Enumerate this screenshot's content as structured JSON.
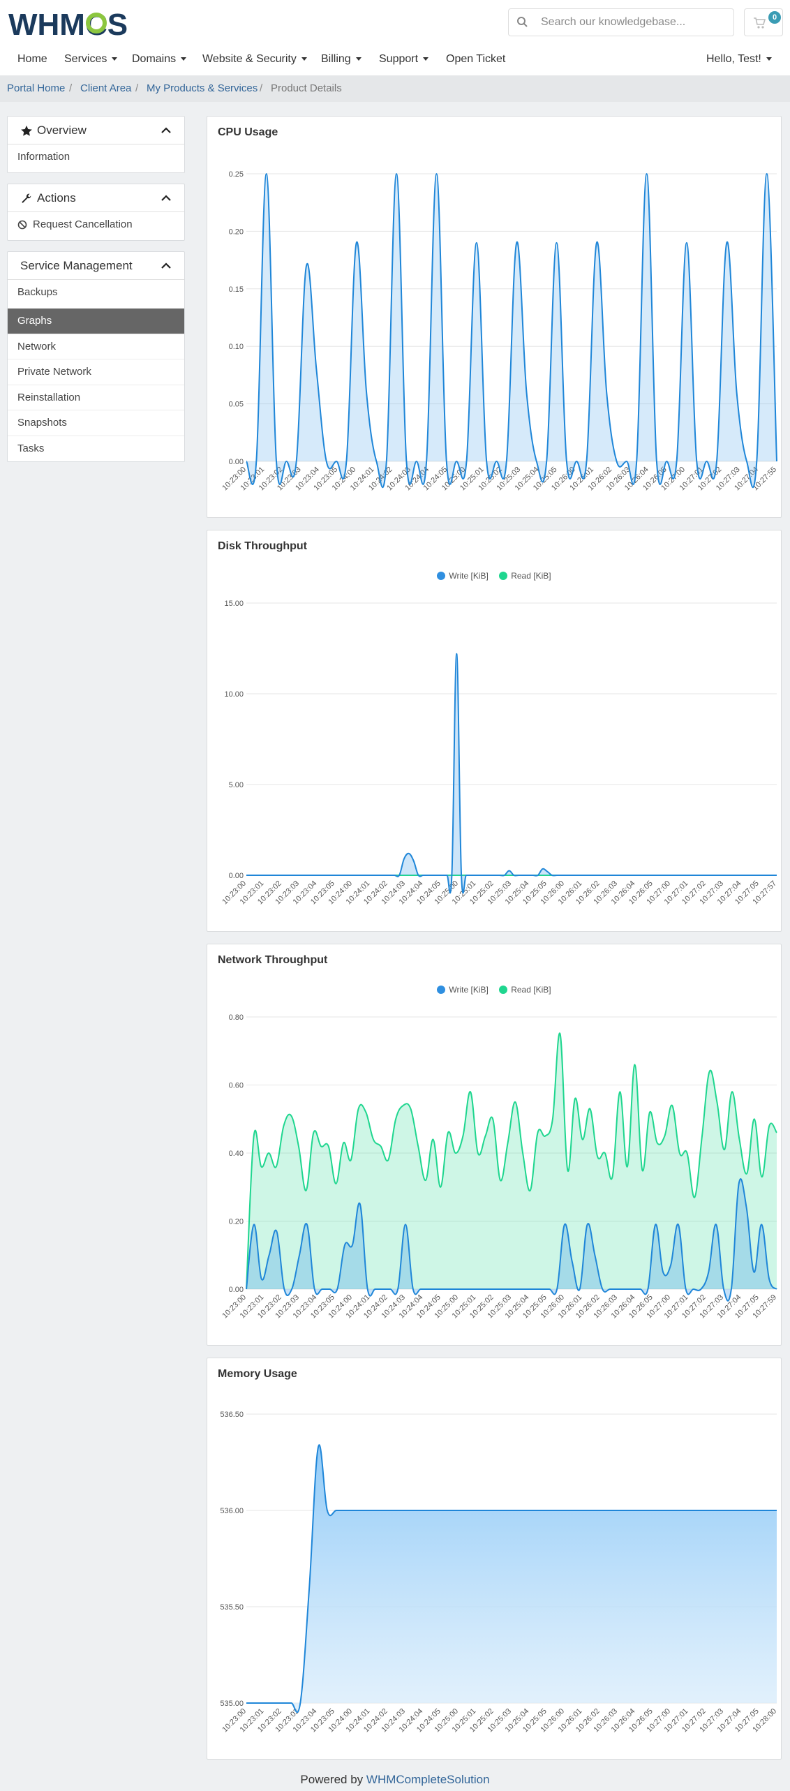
{
  "header": {
    "logo_text": "WHMCS",
    "search": {
      "placeholder": "Search our knowledgebase...",
      "value": ""
    },
    "cart_count": "0"
  },
  "nav": {
    "items": [
      {
        "label": "Home",
        "dropdown": false
      },
      {
        "label": "Services",
        "dropdown": true
      },
      {
        "label": "Domains",
        "dropdown": true
      },
      {
        "label": "Website & Security",
        "dropdown": true
      },
      {
        "label": "Billing",
        "dropdown": true
      },
      {
        "label": "Support",
        "dropdown": true
      },
      {
        "label": "Open Ticket",
        "dropdown": false
      }
    ],
    "user": "Hello, Test!"
  },
  "breadcrumb": [
    "Portal Home",
    "Client Area",
    "My Products & Services",
    "Product Details"
  ],
  "sidebar": {
    "overview": {
      "title": "Overview",
      "items": [
        "Information"
      ]
    },
    "actions": {
      "title": "Actions",
      "items": [
        "Request Cancellation"
      ]
    },
    "service_management": {
      "title": "Service Management",
      "items": [
        "Backups",
        "Graphs",
        "Network",
        "Private Network",
        "Reinstallation",
        "Snapshots",
        "Tasks"
      ],
      "active": "Graphs"
    }
  },
  "colors": {
    "write": "#2f8fe0",
    "read": "#1fd68f",
    "active_bg": "#666666",
    "link": "#336699"
  },
  "chart_data": [
    {
      "type": "area",
      "title": "CPU Usage",
      "yticks": [
        "0.00",
        "0.05",
        "0.10",
        "0.15",
        "0.20",
        "0.25"
      ],
      "ylim": [
        0,
        0.25
      ],
      "xticks": [
        "10:23:00",
        "10:23:01",
        "10:23:02",
        "10:23:03",
        "10:23:04",
        "10:23:05",
        "10:24:00",
        "10:24:01",
        "10:24:02",
        "10:24:03",
        "10:24:04",
        "10:24:05",
        "10:25:00",
        "10:25:01",
        "10:25:02",
        "10:25:03",
        "10:25:04",
        "10:25:05",
        "10:26:00",
        "10:26:01",
        "10:26:02",
        "10:26:03",
        "10:26:04",
        "10:26:05",
        "10:27:00",
        "10:27:01",
        "10:27:02",
        "10:27:03",
        "10:27:04",
        "10:27:55"
      ],
      "grid": true,
      "series": [
        {
          "values": [
            0,
            0,
            0.25,
            0,
            0,
            0,
            0.17,
            0.08,
            0,
            0,
            0,
            0.19,
            0.06,
            0,
            0,
            0.25,
            0,
            0,
            0,
            0.25,
            0,
            0,
            0,
            0.19,
            0,
            0,
            0,
            0.19,
            0.06,
            0,
            0,
            0.19,
            0,
            0,
            0,
            0.19,
            0.06,
            0,
            0,
            0,
            0.25,
            0,
            0,
            0,
            0.19,
            0,
            0,
            0,
            0.19,
            0.06,
            0,
            0,
            0.25,
            0
          ]
        }
      ]
    },
    {
      "type": "area",
      "title": "Disk Throughput",
      "legend": [
        "Write [KiB]",
        "Read [KiB]"
      ],
      "yticks": [
        "0.00",
        "5.00",
        "10.00",
        "15.00"
      ],
      "ylim": [
        0,
        15
      ],
      "xticks": [
        "10:23:00",
        "10:23:01",
        "10:23:02",
        "10:23:03",
        "10:23:04",
        "10:23:05",
        "10:24:00",
        "10:24:01",
        "10:24:02",
        "10:24:03",
        "10:24:04",
        "10:24:05",
        "10:25:00",
        "10:25:01",
        "10:25:02",
        "10:25:03",
        "10:25:04",
        "10:25:05",
        "10:26:00",
        "10:26:01",
        "10:26:02",
        "10:26:03",
        "10:26:04",
        "10:26:05",
        "10:27:00",
        "10:27:01",
        "10:27:02",
        "10:27:03",
        "10:27:04",
        "10:27:05",
        "10:27:57"
      ],
      "grid": true,
      "series": [
        {
          "name": "Write [KiB]",
          "values": [
            0,
            0,
            0,
            0,
            0,
            0,
            0,
            0,
            0,
            0,
            0,
            0,
            0,
            0,
            0,
            0,
            0,
            0,
            0,
            0,
            0,
            0,
            0,
            0,
            0,
            0,
            0,
            0,
            0,
            0,
            0,
            0,
            0,
            0.9,
            1.2,
            0.8,
            0,
            0,
            0,
            0,
            0,
            0,
            0,
            0,
            12.2,
            0,
            0,
            0,
            0,
            0,
            0,
            0,
            0,
            0,
            0,
            0.25,
            0,
            0,
            0,
            0,
            0,
            0,
            0.35,
            0.2,
            0,
            0,
            0,
            0,
            0,
            0,
            0,
            0,
            0,
            0,
            0,
            0,
            0,
            0,
            0,
            0,
            0,
            0,
            0,
            0,
            0,
            0,
            0,
            0,
            0,
            0,
            0,
            0,
            0,
            0,
            0,
            0,
            0,
            0,
            0,
            0,
            0,
            0,
            0,
            0,
            0,
            0,
            0,
            0,
            0,
            0,
            0,
            0
          ]
        },
        {
          "name": "Read [KiB]",
          "values": [
            0,
            0,
            0,
            0,
            0,
            0,
            0,
            0,
            0,
            0,
            0,
            0
          ]
        }
      ]
    },
    {
      "type": "area",
      "title": "Network Throughput",
      "legend": [
        "Write [KiB]",
        "Read [KiB]"
      ],
      "yticks": [
        "0.00",
        "0.20",
        "0.40",
        "0.60",
        "0.80"
      ],
      "ylim": [
        0,
        0.8
      ],
      "xticks": [
        "10:23:00",
        "10:23:01",
        "10:23:02",
        "10:23:03",
        "10:23:04",
        "10:23:05",
        "10:24:00",
        "10:24:01",
        "10:24:02",
        "10:24:03",
        "10:24:04",
        "10:24:05",
        "10:25:00",
        "10:25:01",
        "10:25:02",
        "10:25:03",
        "10:25:04",
        "10:25:05",
        "10:26:00",
        "10:26:01",
        "10:26:02",
        "10:26:03",
        "10:26:04",
        "10:26:05",
        "10:27:00",
        "10:27:01",
        "10:27:02",
        "10:27:03",
        "10:27:04",
        "10:27:05",
        "10:27:59"
      ],
      "grid": true,
      "series": [
        {
          "name": "Write [KiB]",
          "values": [
            0,
            0.19,
            0.03,
            0.1,
            0.17,
            0,
            0,
            0.1,
            0.19,
            0,
            0,
            0,
            0,
            0.13,
            0.13,
            0.25,
            0,
            0,
            0,
            0,
            0,
            0.19,
            0,
            0,
            0,
            0,
            0,
            0,
            0,
            0,
            0,
            0,
            0,
            0,
            0,
            0,
            0,
            0,
            0,
            0,
            0,
            0,
            0.19,
            0.08,
            0,
            0.19,
            0.1,
            0,
            0,
            0,
            0,
            0,
            0,
            0,
            0.19,
            0.05,
            0.07,
            0.19,
            0,
            0,
            0,
            0.05,
            0.19,
            0,
            0,
            0.31,
            0.24,
            0.05,
            0.19,
            0.03,
            0
          ]
        },
        {
          "name": "Read [KiB]",
          "values": [
            0,
            0.45,
            0.36,
            0.4,
            0.36,
            0.48,
            0.51,
            0.42,
            0.29,
            0.46,
            0.42,
            0.42,
            0.31,
            0.43,
            0.38,
            0.53,
            0.52,
            0.44,
            0.42,
            0.38,
            0.5,
            0.54,
            0.53,
            0.42,
            0.32,
            0.44,
            0.3,
            0.46,
            0.4,
            0.45,
            0.58,
            0.4,
            0.45,
            0.5,
            0.32,
            0.43,
            0.55,
            0.4,
            0.29,
            0.46,
            0.45,
            0.5,
            0.75,
            0.35,
            0.56,
            0.44,
            0.53,
            0.39,
            0.4,
            0.33,
            0.58,
            0.36,
            0.66,
            0.35,
            0.52,
            0.43,
            0.45,
            0.54,
            0.4,
            0.4,
            0.27,
            0.45,
            0.64,
            0.55,
            0.41,
            0.58,
            0.44,
            0.34,
            0.5,
            0.33,
            0.48,
            0.46
          ]
        }
      ]
    },
    {
      "type": "area",
      "title": "Memory Usage",
      "yticks": [
        "535.00",
        "535.50",
        "536.00",
        "536.50"
      ],
      "ylim": [
        535,
        536.5
      ],
      "xticks": [
        "10:23:00",
        "10:23:01",
        "10:23:02",
        "10:23:03",
        "10:23:04",
        "10:23:05",
        "10:24:00",
        "10:24:01",
        "10:24:02",
        "10:24:03",
        "10:24:04",
        "10:24:05",
        "10:25:00",
        "10:25:01",
        "10:25:02",
        "10:25:03",
        "10:25:04",
        "10:25:05",
        "10:26:00",
        "10:26:01",
        "10:26:02",
        "10:26:03",
        "10:26:04",
        "10:26:05",
        "10:27:00",
        "10:27:01",
        "10:27:02",
        "10:27:03",
        "10:27:04",
        "10:27:05",
        "10:28:00"
      ],
      "grid": true,
      "series": [
        {
          "values": [
            535,
            535,
            535,
            535,
            535,
            535,
            535,
            535.6,
            536.33,
            536.0,
            536,
            536,
            536,
            536,
            536,
            536,
            536,
            536,
            536,
            536,
            536,
            536,
            536,
            536,
            536,
            536,
            536,
            536,
            536,
            536,
            536,
            536,
            536,
            536,
            536,
            536,
            536,
            536,
            536,
            536,
            536,
            536,
            536,
            536,
            536,
            536,
            536,
            536,
            536,
            536,
            536,
            536,
            536,
            536,
            536,
            536,
            536,
            536,
            536,
            536
          ]
        }
      ]
    }
  ],
  "footer": {
    "prefix": "Powered by ",
    "link": "WHMCompleteSolution"
  }
}
